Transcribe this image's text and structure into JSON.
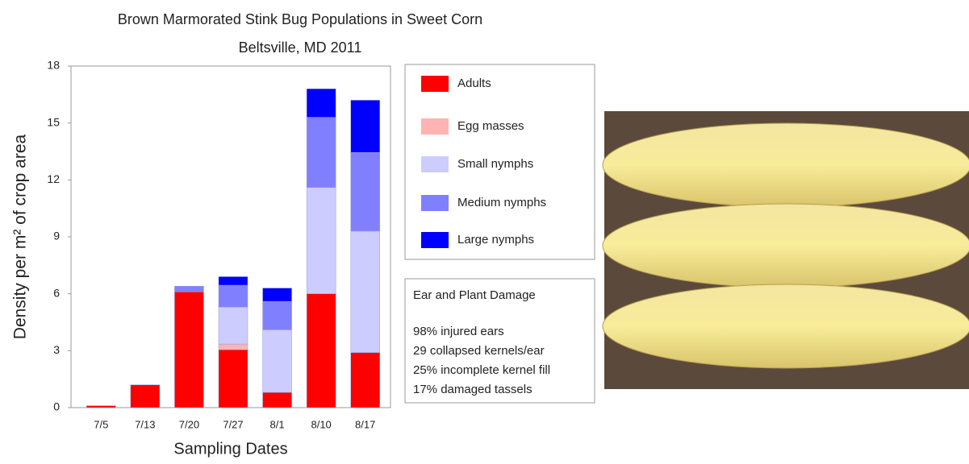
{
  "chart_data": {
    "type": "bar",
    "stacked": true,
    "title": "Brown Marmorated Stink Bug Populations in Sweet Corn",
    "subtitle": "Beltsville, MD 2011",
    "x_label": "Sampling Dates",
    "y_label": "Density per m² of crop area",
    "categories": [
      "7/5",
      "7/13",
      "7/20",
      "7/27",
      "8/1",
      "8/10",
      "8/17"
    ],
    "series": [
      {
        "name": "Adults",
        "color": "#ff0000",
        "values": [
          0.1,
          1.2,
          6.1,
          3.05,
          0.8,
          6.0,
          2.9
        ]
      },
      {
        "name": "Egg masses",
        "color": "#ffb3b3",
        "values": [
          0,
          0,
          0,
          0.3,
          0,
          0,
          0
        ]
      },
      {
        "name": "Small nymphs",
        "color": "#ccccff",
        "values": [
          0,
          0,
          0,
          1.95,
          3.3,
          5.6,
          6.4
        ]
      },
      {
        "name": "Medium nymphs",
        "color": "#8080ff",
        "values": [
          0,
          0,
          0.3,
          1.15,
          1.5,
          3.7,
          4.15
        ]
      },
      {
        "name": "Large nymphs",
        "color": "#0000ff",
        "values": [
          0,
          0,
          0,
          0.45,
          0.7,
          1.5,
          2.75
        ]
      }
    ],
    "ylim": [
      0,
      18
    ],
    "yticks": [
      0,
      3,
      6,
      9,
      12,
      15,
      18
    ],
    "grid": false,
    "annotation": {
      "title": "Ear and Plant Damage",
      "lines": [
        "98% injured ears",
        "29 collapsed kernels/ear",
        "25% incomplete kernel fill",
        "17% damaged tassels"
      ]
    }
  }
}
